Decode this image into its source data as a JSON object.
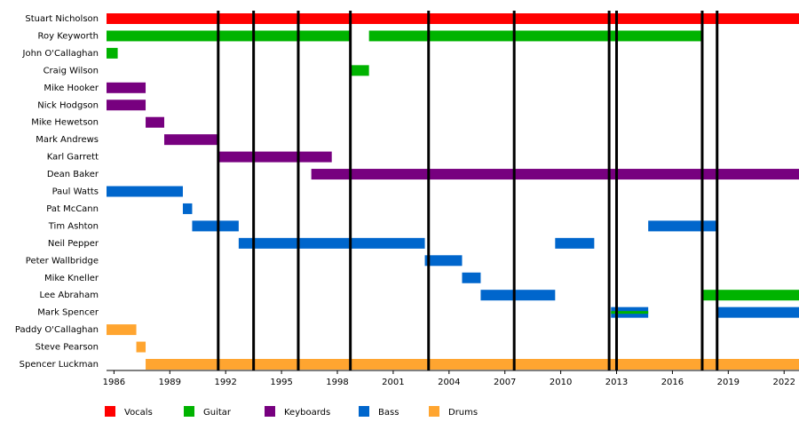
{
  "chart_data": {
    "type": "timeline",
    "categories": [
      "Stuart Nicholson",
      "Roy Keyworth",
      "John O'Callaghan",
      "Craig Wilson",
      "Mike Hooker",
      "Nick Hodgson",
      "Mike Hewetson",
      "Mark Andrews",
      "Karl Garrett",
      "Dean Baker",
      "Paul Watts",
      "Pat McCann",
      "Tim Ashton",
      "Neil Pepper",
      "Peter Wallbridge",
      "Mike Kneller",
      "Lee Abraham",
      "Mark Spencer",
      "Paddy O'Callaghan",
      "Steve Pearson",
      "Spencer Luckman"
    ],
    "series": [
      {
        "name": "Vocals",
        "color": "#ff0000",
        "values": [
          [
            [
              1985.6,
              2022.8
            ]
          ],
          [],
          [],
          [],
          [],
          [],
          [],
          [],
          [],
          [],
          [],
          [],
          [],
          [],
          [],
          [],
          [],
          [],
          [],
          [],
          []
        ]
      },
      {
        "name": "Guitar",
        "color": "#00b300",
        "values": [
          [],
          [
            [
              1985.6,
              1998.7
            ],
            [
              1999.7,
              2017.6
            ]
          ],
          [
            [
              1985.6,
              1986.2
            ]
          ],
          [
            [
              1998.7,
              1999.7
            ]
          ],
          [],
          [],
          [],
          [],
          [],
          [],
          [],
          [],
          [],
          [],
          [],
          [],
          [
            [
              2017.6,
              2022.8
            ]
          ],
          [
            [
              2012.7,
              2014.7
            ]
          ],
          [],
          [],
          []
        ]
      },
      {
        "name": "Keyboards",
        "color": "#77007f",
        "values": [
          [],
          [],
          [],
          [],
          [
            [
              1985.6,
              1987.7
            ]
          ],
          [
            [
              1985.6,
              1987.7
            ]
          ],
          [
            [
              1987.7,
              1988.7
            ]
          ],
          [
            [
              1988.7,
              1991.6
            ]
          ],
          [
            [
              1991.6,
              1997.7
            ]
          ],
          [
            [
              1996.6,
              2022.8
            ]
          ],
          [],
          [],
          [],
          [],
          [],
          [],
          [],
          [],
          [],
          [],
          []
        ]
      },
      {
        "name": "Bass",
        "color": "#0066cc",
        "values": [
          [],
          [],
          [],
          [],
          [],
          [],
          [],
          [],
          [],
          [],
          [
            [
              1985.6,
              1989.7
            ]
          ],
          [
            [
              1989.7,
              1990.2
            ]
          ],
          [
            [
              1990.2,
              1992.7
            ],
            [
              2014.7,
              2018.4
            ]
          ],
          [
            [
              1992.7,
              2002.7
            ],
            [
              2009.7,
              2011.8
            ]
          ],
          [
            [
              2002.7,
              2004.7
            ]
          ],
          [
            [
              2004.7,
              2005.7
            ]
          ],
          [
            [
              2005.7,
              2009.7
            ]
          ],
          [
            [
              2012.7,
              2014.7
            ],
            [
              2018.4,
              2022.8
            ]
          ],
          [],
          [],
          []
        ]
      },
      {
        "name": "Drums",
        "color": "#ffa530",
        "values": [
          [],
          [],
          [],
          [],
          [],
          [],
          [],
          [],
          [],
          [],
          [],
          [],
          [],
          [],
          [],
          [],
          [],
          [],
          [
            [
              1985.6,
              1987.2
            ]
          ],
          [
            [
              1987.2,
              1987.7
            ]
          ],
          [
            [
              1987.7,
              2022.8
            ]
          ]
        ]
      }
    ],
    "events": [
      1991.6,
      1993.5,
      1995.9,
      1998.7,
      2002.9,
      2007.5,
      2012.6,
      2013.0,
      2017.6,
      2018.4
    ],
    "xlim": [
      1985.6,
      2022.8
    ],
    "xticks": [
      1986,
      1989,
      1992,
      1995,
      1998,
      2001,
      2004,
      2007,
      2010,
      2013,
      2016,
      2019,
      2022
    ]
  }
}
